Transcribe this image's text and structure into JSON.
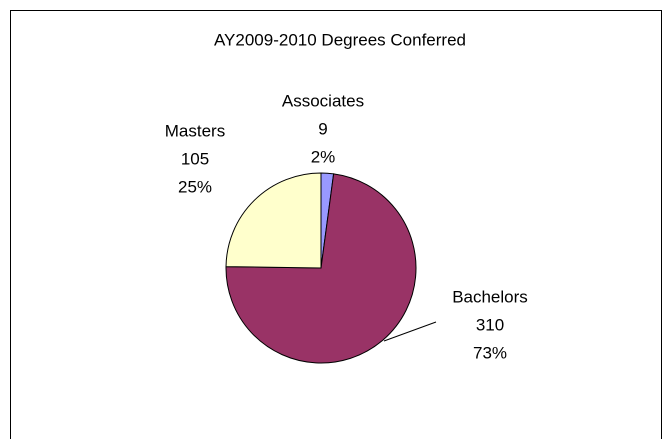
{
  "chart_data": {
    "type": "pie",
    "title": "AY2009-2010 Degrees Conferred",
    "categories": [
      "Associates",
      "Bachelors",
      "Masters"
    ],
    "values": [
      9,
      310,
      105
    ],
    "percent_labels": [
      "2%",
      "73%",
      "25%"
    ],
    "colors": [
      "#9999ff",
      "#993366",
      "#ffffcc"
    ]
  }
}
